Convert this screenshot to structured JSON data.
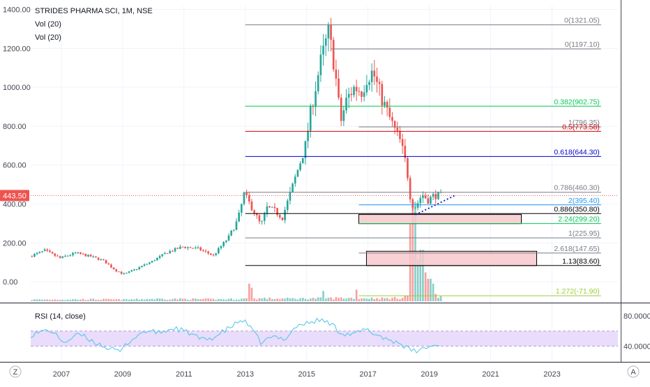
{
  "legend": {
    "symbol_line": "STRIDES PHARMA SCI, 1M, NSE",
    "vol_lines": [
      "Vol (20)",
      "Vol (20)"
    ],
    "rsi_label": "RSI (14, close)"
  },
  "corner": {
    "left_button": "Z",
    "right_button": "A"
  },
  "colors": {
    "up": "#26a69a",
    "down": "#ef5350",
    "rsi_line": "#4cc3e6",
    "rsi_band": "#e9ddfb",
    "price_badge": "#ef5350"
  },
  "chart_data": {
    "type": "candlestick",
    "ylim": [
      -100,
      1420
    ],
    "y_ticks": [
      {
        "value": 1400,
        "label": "1400.00"
      },
      {
        "value": 1200,
        "label": "1200.00"
      },
      {
        "value": 1000,
        "label": "1000.00"
      },
      {
        "value": 800,
        "label": "800.00"
      },
      {
        "value": 600,
        "label": "600.00"
      },
      {
        "value": 400,
        "label": "400.00"
      },
      {
        "value": 200,
        "label": "200.00"
      },
      {
        "value": 0,
        "label": "0.00"
      }
    ],
    "xlim": [
      2006.0,
      2025.15
    ],
    "x_ticks": [
      {
        "value": 2007,
        "label": "2007"
      },
      {
        "value": 2009,
        "label": "2009"
      },
      {
        "value": 2011,
        "label": "2011"
      },
      {
        "value": 2013,
        "label": "2013"
      },
      {
        "value": 2015,
        "label": "2015"
      },
      {
        "value": 2017,
        "label": "2017"
      },
      {
        "value": 2019,
        "label": "2019"
      },
      {
        "value": 2021,
        "label": "2021"
      },
      {
        "value": 2023,
        "label": "2023"
      }
    ],
    "last_price": {
      "value": 443.5,
      "label": "443.50"
    },
    "anchors": [
      [
        2006.0,
        130
      ],
      [
        2006.5,
        160
      ],
      [
        2007.0,
        122
      ],
      [
        2007.5,
        148
      ],
      [
        2008.0,
        130
      ],
      [
        2008.4,
        110
      ],
      [
        2008.8,
        60
      ],
      [
        2009.1,
        38
      ],
      [
        2009.5,
        68
      ],
      [
        2010.0,
        105
      ],
      [
        2010.5,
        152
      ],
      [
        2011.0,
        180
      ],
      [
        2011.5,
        170
      ],
      [
        2012.0,
        135
      ],
      [
        2012.5,
        230
      ],
      [
        2012.8,
        320
      ],
      [
        2013.0,
        450
      ],
      [
        2013.3,
        370
      ],
      [
        2013.55,
        290
      ],
      [
        2013.75,
        380
      ],
      [
        2014.0,
        365
      ],
      [
        2014.25,
        330
      ],
      [
        2014.5,
        450
      ],
      [
        2014.8,
        600
      ],
      [
        2015.0,
        700
      ],
      [
        2015.2,
        900
      ],
      [
        2015.5,
        1130
      ],
      [
        2015.75,
        1280
      ],
      [
        2015.95,
        1110
      ],
      [
        2016.15,
        820
      ],
      [
        2016.35,
        940
      ],
      [
        2016.6,
        1000
      ],
      [
        2016.85,
        980
      ],
      [
        2017.0,
        1050
      ],
      [
        2017.2,
        1080
      ],
      [
        2017.45,
        960
      ],
      [
        2017.7,
        860
      ],
      [
        2017.9,
        785
      ],
      [
        2018.1,
        720
      ],
      [
        2018.3,
        590
      ],
      [
        2018.45,
        400
      ],
      [
        2018.6,
        385
      ],
      [
        2018.8,
        450
      ],
      [
        2019.0,
        420
      ],
      [
        2019.2,
        445
      ],
      [
        2019.35,
        443.5
      ]
    ],
    "volume": [
      [
        2006.0,
        0.5
      ],
      [
        2007.0,
        0.55
      ],
      [
        2008.0,
        0.6
      ],
      [
        2009.0,
        0.5
      ],
      [
        2010.0,
        0.75
      ],
      [
        2011.0,
        0.7
      ],
      [
        2012.0,
        0.6
      ],
      [
        2013.0,
        0.75
      ],
      [
        2013.6,
        0.9
      ],
      [
        2014.0,
        0.8
      ],
      [
        2014.8,
        0.85
      ],
      [
        2015.5,
        0.95
      ],
      [
        2016.0,
        1.0
      ],
      [
        2016.5,
        1.0
      ],
      [
        2017.0,
        0.95
      ],
      [
        2017.5,
        0.9
      ],
      [
        2018.0,
        1.0
      ],
      [
        2018.4,
        2.2
      ],
      [
        2018.7,
        3.8
      ],
      [
        2019.0,
        2.2
      ],
      [
        2019.35,
        1.5
      ]
    ],
    "volume_spikes": [
      {
        "x": 2013.05,
        "v": 5.5
      },
      {
        "x": 2013.17,
        "v": 4.2
      },
      {
        "x": 2015.5,
        "v": 3.2
      },
      {
        "x": 2016.6,
        "v": 3.6
      },
      {
        "x": 2018.35,
        "v": 24
      },
      {
        "x": 2018.45,
        "v": 31
      },
      {
        "x": 2018.55,
        "v": 18
      },
      {
        "x": 2018.62,
        "v": 13
      },
      {
        "x": 2018.7,
        "v": 16
      },
      {
        "x": 2018.8,
        "v": 9
      },
      {
        "x": 2018.95,
        "v": 7
      },
      {
        "x": 2019.05,
        "v": 5.5
      }
    ],
    "rsi": {
      "ylim": [
        20,
        95
      ],
      "band": [
        40,
        60
      ],
      "ticks": [
        {
          "value": 80,
          "label": "80.0000"
        },
        {
          "value": 40,
          "label": "40.0000"
        }
      ],
      "anchors": [
        [
          2006.0,
          55
        ],
        [
          2006.6,
          62
        ],
        [
          2007.1,
          45
        ],
        [
          2007.6,
          56
        ],
        [
          2008.0,
          47
        ],
        [
          2008.5,
          38
        ],
        [
          2008.9,
          32
        ],
        [
          2009.2,
          46
        ],
        [
          2009.7,
          60
        ],
        [
          2010.2,
          58
        ],
        [
          2010.7,
          64
        ],
        [
          2011.2,
          57
        ],
        [
          2011.6,
          48
        ],
        [
          2012.0,
          52
        ],
        [
          2012.5,
          65
        ],
        [
          2012.9,
          75
        ],
        [
          2013.1,
          68
        ],
        [
          2013.5,
          45
        ],
        [
          2013.9,
          52
        ],
        [
          2014.3,
          50
        ],
        [
          2014.7,
          68
        ],
        [
          2015.0,
          70
        ],
        [
          2015.4,
          75
        ],
        [
          2015.8,
          70
        ],
        [
          2016.1,
          58
        ],
        [
          2016.5,
          55
        ],
        [
          2016.9,
          62
        ],
        [
          2017.3,
          55
        ],
        [
          2017.7,
          48
        ],
        [
          2018.0,
          45
        ],
        [
          2018.35,
          35
        ],
        [
          2018.55,
          33
        ],
        [
          2018.9,
          38
        ],
        [
          2019.15,
          41
        ],
        [
          2019.35,
          40
        ]
      ]
    },
    "fib_levels": [
      {
        "value": 1321.05,
        "label": "0(1321.05)",
        "color": "#787b86",
        "x_start": 2013.0,
        "x_end": 2024.6
      },
      {
        "value": 1197.1,
        "label": "0(1197.10)",
        "color": "#787b86",
        "x_start": 2015.8,
        "x_end": 2024.6
      },
      {
        "value": 902.75,
        "label": "0.382(902.75)",
        "color": "#00c853",
        "x_start": 2013.0,
        "x_end": 2024.6
      },
      {
        "value": 796.35,
        "label": "1(796.35)",
        "color": "#787b86",
        "x_start": 2016.7,
        "x_end": 2024.6
      },
      {
        "value": 773.58,
        "label": "0.5(773.58)",
        "color": "#d50000",
        "x_start": 2013.0,
        "x_end": 2024.6
      },
      {
        "value": 644.3,
        "label": "0.618(644.30)",
        "color": "#0000cc",
        "x_start": 2013.0,
        "x_end": 2024.6
      },
      {
        "value": 460.3,
        "label": "0.786(460.30)",
        "color": "#787b86",
        "x_start": 2013.0,
        "x_end": 2024.6
      },
      {
        "value": 395.4,
        "label": "2(395.40)",
        "color": "#2196f3",
        "x_start": 2016.7,
        "x_end": 2024.6
      },
      {
        "value": 350.8,
        "label": "0.886(350.80)",
        "color": "#000000",
        "x_start": 2013.0,
        "x_end": 2024.6
      },
      {
        "value": 299.2,
        "label": "2.24(299.20)",
        "color": "#00c853",
        "x_start": 2016.7,
        "x_end": 2024.6
      },
      {
        "value": 225.95,
        "label": "1(225.95)",
        "color": "#787b86",
        "x_start": 2013.0,
        "x_end": 2024.6
      },
      {
        "value": 147.65,
        "label": "2.618(147.65)",
        "color": "#787b86",
        "x_start": 2016.7,
        "x_end": 2024.6
      },
      {
        "value": 83.6,
        "label": "1.13(83.60)",
        "color": "#000000",
        "x_start": 2013.0,
        "x_end": 2024.6
      },
      {
        "value": -71.9,
        "label": "1.272(-71.90)",
        "color": "#9ccc3a",
        "x_start": 2016.7,
        "x_end": 2024.6
      }
    ],
    "zones": [
      {
        "x0": 2016.7,
        "x1": 2022.0,
        "y0": 346,
        "y1": 299
      },
      {
        "x0": 2016.95,
        "x1": 2022.5,
        "y0": 157,
        "y1": 83
      }
    ],
    "trendline": {
      "x0": 2018.55,
      "y0": 345,
      "x1": 2019.85,
      "y1": 445
    },
    "ref_price_line": 443.5
  }
}
